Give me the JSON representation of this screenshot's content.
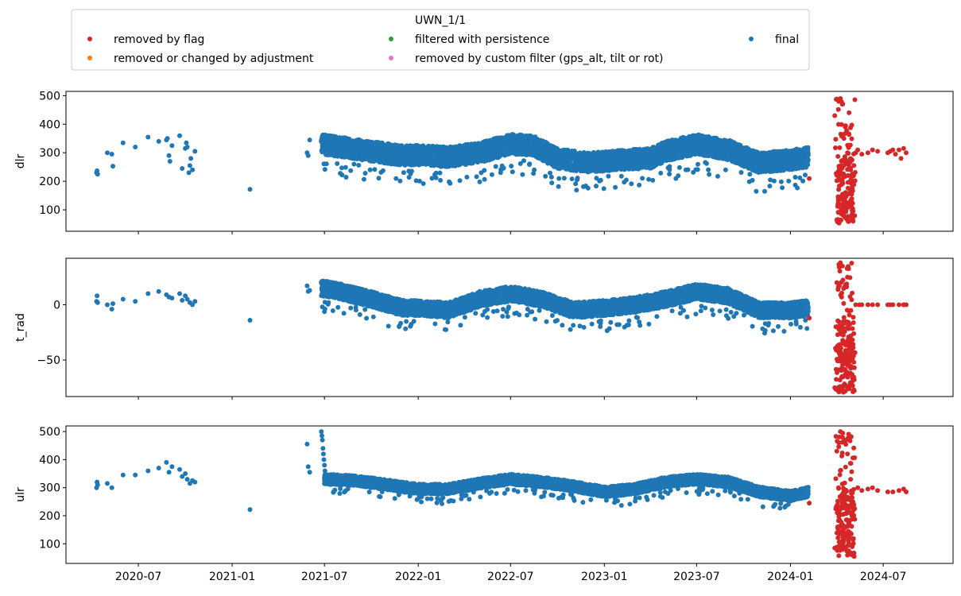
{
  "chart_data": {
    "type": "scatter",
    "legend": {
      "title": "UWN_1/1",
      "placement": "top",
      "columns": 3,
      "entries": [
        {
          "label": "removed by flag",
          "color": "#d62728"
        },
        {
          "label": "removed or changed by adjustment",
          "color": "#ff7f0e"
        },
        {
          "label": "filtered with persistence",
          "color": "#2ca02c"
        },
        {
          "label": "removed by custom filter (gps_alt, tilt or rot)",
          "color": "#e377c2"
        },
        {
          "label": "final",
          "color": "#1f77b4"
        }
      ]
    },
    "xlim": [
      "2020-02-10",
      "2024-11-15"
    ],
    "xticks": [
      {
        "date": "2020-07-01",
        "label": "2020-07"
      },
      {
        "date": "2021-01-01",
        "label": "2021-01"
      },
      {
        "date": "2021-07-01",
        "label": "2021-07"
      },
      {
        "date": "2022-01-01",
        "label": "2022-01"
      },
      {
        "date": "2022-07-01",
        "label": "2022-07"
      },
      {
        "date": "2023-01-01",
        "label": "2023-01"
      },
      {
        "date": "2023-07-01",
        "label": "2023-07"
      },
      {
        "date": "2024-01-01",
        "label": "2024-01"
      },
      {
        "date": "2024-07-01",
        "label": "2024-07"
      }
    ],
    "panels": [
      {
        "ylabel": "dlr",
        "ylim": [
          25,
          515
        ],
        "yticks": [
          100,
          200,
          300,
          400,
          500
        ],
        "series": [
          {
            "color": "#1f77b4",
            "segments": [
              {
                "dates": [
                  "2020-04-10",
                  "2020-04-11",
                  "2020-04-12",
                  "2020-05-01",
                  "2020-05-10",
                  "2020-05-12",
                  "2020-06-01",
                  "2020-06-25",
                  "2020-07-20",
                  "2020-08-10",
                  "2020-08-25",
                  "2020-08-27",
                  "2020-08-30",
                  "2020-09-01",
                  "2020-09-05",
                  "2020-09-20",
                  "2020-09-25",
                  "2020-10-01",
                  "2020-10-03",
                  "2020-10-05",
                  "2020-10-08",
                  "2020-10-10",
                  "2020-10-12",
                  "2020-10-15",
                  "2020-10-20"
                ],
                "values": [
                  230,
                  237,
                  225,
                  300,
                  295,
                  253,
                  335,
                  320,
                  355,
                  340,
                  345,
                  350,
                  290,
                  270,
                  325,
                  360,
                  245,
                  315,
                  335,
                  320,
                  230,
                  255,
                  280,
                  240,
                  305
                ]
              },
              {
                "dates": [
                  "2021-02-05",
                  "2021-05-28",
                  "2021-05-30",
                  "2021-06-02"
                ],
                "values": [
                  172,
                  300,
                  290,
                  345
                ]
              }
            ]
          },
          {
            "color": "#1f77b4",
            "band": true,
            "start": "2021-06-25",
            "end": "2024-02-05",
            "knots": [
              [
                "2021-06-25",
                330
              ],
              [
                "2021-08-01",
                320
              ],
              [
                "2021-10-01",
                305
              ],
              [
                "2021-12-01",
                290
              ],
              [
                "2022-01-01",
                292
              ],
              [
                "2022-03-01",
                285
              ],
              [
                "2022-05-01",
                300
              ],
              [
                "2022-07-01",
                330
              ],
              [
                "2022-08-15",
                325
              ],
              [
                "2022-10-01",
                280
              ],
              [
                "2022-12-01",
                265
              ],
              [
                "2023-02-01",
                275
              ],
              [
                "2023-04-01",
                280
              ],
              [
                "2023-05-01",
                305
              ],
              [
                "2023-07-01",
                330
              ],
              [
                "2023-09-01",
                310
              ],
              [
                "2023-11-01",
                265
              ],
              [
                "2024-01-01",
                275
              ],
              [
                "2024-02-05",
                285
              ]
            ],
            "spread": 35
          },
          {
            "color": "#d62728",
            "flag": true,
            "dates": [
              "2024-03-28",
              "2024-04-01",
              "2024-04-05",
              "2024-04-08",
              "2024-04-12",
              "2024-04-15",
              "2024-04-18",
              "2024-04-22",
              "2024-04-25",
              "2024-04-28",
              "2024-05-01",
              "2024-05-03",
              "2024-05-08",
              "2024-05-12",
              "2024-05-20",
              "2024-06-01",
              "2024-06-10",
              "2024-06-20",
              "2024-07-10",
              "2024-07-15",
              "2024-07-20",
              "2024-07-25",
              "2024-08-01",
              "2024-08-05",
              "2024-08-10",
              "2024-08-15",
              "2024-02-07"
            ],
            "values": [
              430,
              65,
              480,
              490,
              470,
              350,
              110,
              300,
              440,
              240,
              80,
              60,
              300,
              310,
              295,
              300,
              310,
              305,
              300,
              305,
              310,
              295,
              310,
              280,
              315,
              300,
              210
            ],
            "cluster": {
              "start": "2024-04-01",
              "end": "2024-05-05",
              "min": 50,
              "max": 490
            }
          }
        ]
      },
      {
        "ylabel": "t_rad",
        "ylim": [
          -83,
          42
        ],
        "yticks": [
          -50,
          0
        ],
        "series": [
          {
            "color": "#1f77b4",
            "segments": [
              {
                "dates": [
                  "2020-04-10",
                  "2020-04-11",
                  "2020-04-12",
                  "2020-05-01",
                  "2020-05-10",
                  "2020-05-12",
                  "2020-06-01",
                  "2020-06-25",
                  "2020-07-20",
                  "2020-08-10",
                  "2020-08-25",
                  "2020-08-30",
                  "2020-09-05",
                  "2020-09-20",
                  "2020-09-25",
                  "2020-10-01",
                  "2020-10-05",
                  "2020-10-10",
                  "2020-10-15",
                  "2020-10-20"
                ],
                "values": [
                  3,
                  8,
                  2,
                  0,
                  -4,
                  1,
                  5,
                  3,
                  10,
                  12,
                  9,
                  7,
                  6,
                  10,
                  4,
                  8,
                  5,
                  2,
                  0,
                  3
                ]
              },
              {
                "dates": [
                  "2021-02-05",
                  "2021-05-28",
                  "2021-05-30",
                  "2021-06-02"
                ],
                "values": [
                  -14,
                  17,
                  12,
                  13
                ]
              }
            ]
          },
          {
            "color": "#1f77b4",
            "band": true,
            "start": "2021-06-25",
            "end": "2024-02-05",
            "knots": [
              [
                "2021-06-25",
                15
              ],
              [
                "2021-08-01",
                12
              ],
              [
                "2021-10-01",
                5
              ],
              [
                "2021-12-01",
                -3
              ],
              [
                "2022-01-01",
                -3
              ],
              [
                "2022-03-01",
                -5
              ],
              [
                "2022-05-01",
                5
              ],
              [
                "2022-07-01",
                10
              ],
              [
                "2022-09-01",
                5
              ],
              [
                "2022-11-01",
                -5
              ],
              [
                "2023-01-01",
                -3
              ],
              [
                "2023-03-01",
                0
              ],
              [
                "2023-05-01",
                5
              ],
              [
                "2023-07-01",
                12
              ],
              [
                "2023-09-01",
                8
              ],
              [
                "2023-11-01",
                -5
              ],
              [
                "2024-01-01",
                -5
              ],
              [
                "2024-02-05",
                -3
              ]
            ],
            "spread": 7
          },
          {
            "color": "#d62728",
            "flag": true,
            "dates": [
              "2024-03-28",
              "2024-04-01",
              "2024-04-08",
              "2024-04-12",
              "2024-04-22",
              "2024-04-28",
              "2024-05-01",
              "2024-05-08",
              "2024-05-15",
              "2024-05-20",
              "2024-06-01",
              "2024-06-10",
              "2024-06-20",
              "2024-07-10",
              "2024-07-15",
              "2024-07-20",
              "2024-08-01",
              "2024-08-10",
              "2024-08-15",
              "2024-02-07"
            ],
            "values": [
              -75,
              20,
              38,
              35,
              25,
              -62,
              -63,
              0,
              0,
              0,
              0,
              0,
              0,
              0,
              0,
              0,
              0,
              0,
              0,
              -12
            ],
            "cluster": {
              "start": "2024-04-01",
              "end": "2024-05-05",
              "min": -80,
              "max": 38
            }
          }
        ]
      },
      {
        "ylabel": "ulr",
        "ylim": [
          30,
          520
        ],
        "yticks": [
          100,
          200,
          300,
          400,
          500
        ],
        "series": [
          {
            "color": "#1f77b4",
            "segments": [
              {
                "dates": [
                  "2020-04-10",
                  "2020-04-11",
                  "2020-04-12",
                  "2020-05-01",
                  "2020-05-10",
                  "2020-06-01",
                  "2020-06-25",
                  "2020-07-20",
                  "2020-08-10",
                  "2020-08-25",
                  "2020-08-30",
                  "2020-09-05",
                  "2020-09-20",
                  "2020-09-25",
                  "2020-10-01",
                  "2020-10-05",
                  "2020-10-10",
                  "2020-10-15",
                  "2020-10-20"
                ],
                "values": [
                  300,
                  320,
                  310,
                  315,
                  300,
                  345,
                  345,
                  360,
                  370,
                  390,
                  355,
                  375,
                  365,
                  340,
                  350,
                  330,
                  315,
                  325,
                  320
                ]
              },
              {
                "dates": [
                  "2021-02-05",
                  "2021-05-28",
                  "2021-05-30",
                  "2021-06-02"
                ],
                "values": [
                  222,
                  455,
                  375,
                  355
                ]
              },
              {
                "dates": [
                  "2021-06-25",
                  "2021-06-26",
                  "2021-06-27",
                  "2021-06-28",
                  "2021-06-29",
                  "2021-06-30",
                  "2021-07-01",
                  "2021-07-02"
                ],
                "values": [
                  500,
                  485,
                  470,
                  440,
                  420,
                  400,
                  380,
                  360
                ]
              }
            ]
          },
          {
            "color": "#1f77b4",
            "band": true,
            "start": "2021-07-01",
            "end": "2024-02-05",
            "knots": [
              [
                "2021-07-01",
                330
              ],
              [
                "2021-09-01",
                325
              ],
              [
                "2021-11-01",
                310
              ],
              [
                "2022-01-01",
                295
              ],
              [
                "2022-03-01",
                295
              ],
              [
                "2022-05-01",
                315
              ],
              [
                "2022-07-01",
                330
              ],
              [
                "2022-09-01",
                320
              ],
              [
                "2022-11-01",
                305
              ],
              [
                "2023-01-01",
                285
              ],
              [
                "2023-03-01",
                295
              ],
              [
                "2023-05-01",
                320
              ],
              [
                "2023-07-01",
                330
              ],
              [
                "2023-09-01",
                320
              ],
              [
                "2023-11-01",
                285
              ],
              [
                "2024-01-01",
                270
              ],
              [
                "2024-02-05",
                285
              ]
            ],
            "spread": 18
          },
          {
            "color": "#d62728",
            "flag": true,
            "dates": [
              "2024-03-28",
              "2024-04-01",
              "2024-04-05",
              "2024-04-08",
              "2024-04-12",
              "2024-04-18",
              "2024-04-22",
              "2024-04-28",
              "2024-05-01",
              "2024-05-05",
              "2024-05-12",
              "2024-05-20",
              "2024-06-01",
              "2024-06-10",
              "2024-06-20",
              "2024-07-10",
              "2024-07-20",
              "2024-08-01",
              "2024-08-10",
              "2024-08-15",
              "2024-02-07"
            ],
            "values": [
              85,
              430,
              460,
              500,
              480,
              240,
              420,
              330,
              60,
              55,
              300,
              290,
              295,
              300,
              290,
              285,
              285,
              290,
              295,
              285,
              245
            ],
            "cluster": {
              "start": "2024-04-01",
              "end": "2024-05-05",
              "min": 55,
              "max": 500
            }
          }
        ]
      }
    ]
  }
}
